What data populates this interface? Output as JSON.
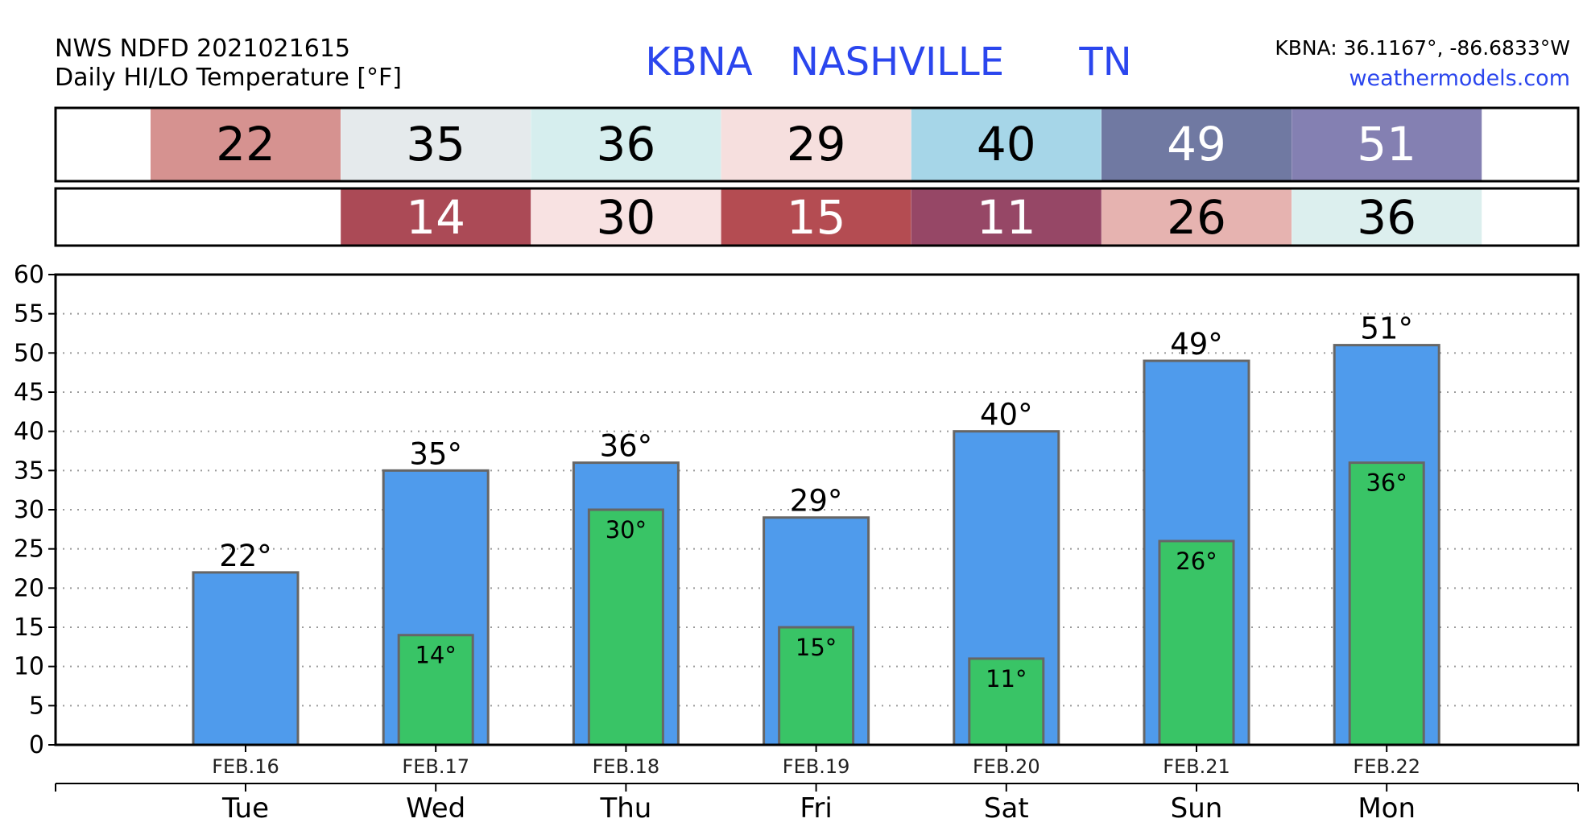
{
  "header": {
    "source_line": "NWS NDFD 2021021615",
    "product_line": "Daily HI/LO Temperature [°F]",
    "station_id": "KBNA",
    "station_name": "NASHVILLE",
    "state": "TN",
    "coords": "KBNA: 36.1167°, -86.6833°W",
    "site": "weathermodels.com",
    "title_color": "#2b46ee",
    "site_color": "#2b46ee"
  },
  "colors": {
    "high_bar": "#4f9bec",
    "low_bar": "#39c466",
    "bar_edge": "#666666"
  },
  "chart_data": {
    "type": "bar",
    "categories": [
      "Tue",
      "Wed",
      "Thu",
      "Fri",
      "Sat",
      "Sun",
      "Mon"
    ],
    "dates": [
      "FEB.16",
      "FEB.17",
      "FEB.18",
      "FEB.19",
      "FEB.20",
      "FEB.21",
      "FEB.22"
    ],
    "series": [
      {
        "values": [
          22,
          35,
          36,
          29,
          40,
          49,
          51
        ]
      },
      {
        "values": [
          null,
          14,
          30,
          15,
          11,
          26,
          36
        ]
      }
    ],
    "ylim": [
      0,
      60
    ],
    "yticks": [
      0,
      5,
      10,
      15,
      20,
      25,
      30,
      35,
      40,
      45,
      50,
      55,
      60
    ],
    "value_labels": {
      "high": [
        "22°",
        "35°",
        "36°",
        "29°",
        "40°",
        "49°",
        "51°"
      ],
      "low": [
        "",
        "14°",
        "30°",
        "15°",
        "11°",
        "26°",
        "36°"
      ]
    },
    "grid": true,
    "high_cell_colors": [
      "#d69290",
      "#e5eaec",
      "#d6eeee",
      "#f6dfde",
      "#a6d6e8",
      "#7079a2",
      "#8480b2"
    ],
    "high_cell_text": [
      "#000000",
      "#000000",
      "#000000",
      "#000000",
      "#000000",
      "#ffffff",
      "#ffffff"
    ],
    "low_cell_colors": [
      null,
      "#ab4a56",
      "#f8e2e2",
      "#b44c52",
      "#964766",
      "#e6b3b0",
      "#dcefee"
    ],
    "low_cell_text": [
      "#000000",
      "#ffffff",
      "#000000",
      "#ffffff",
      "#ffffff",
      "#000000",
      "#000000"
    ]
  }
}
